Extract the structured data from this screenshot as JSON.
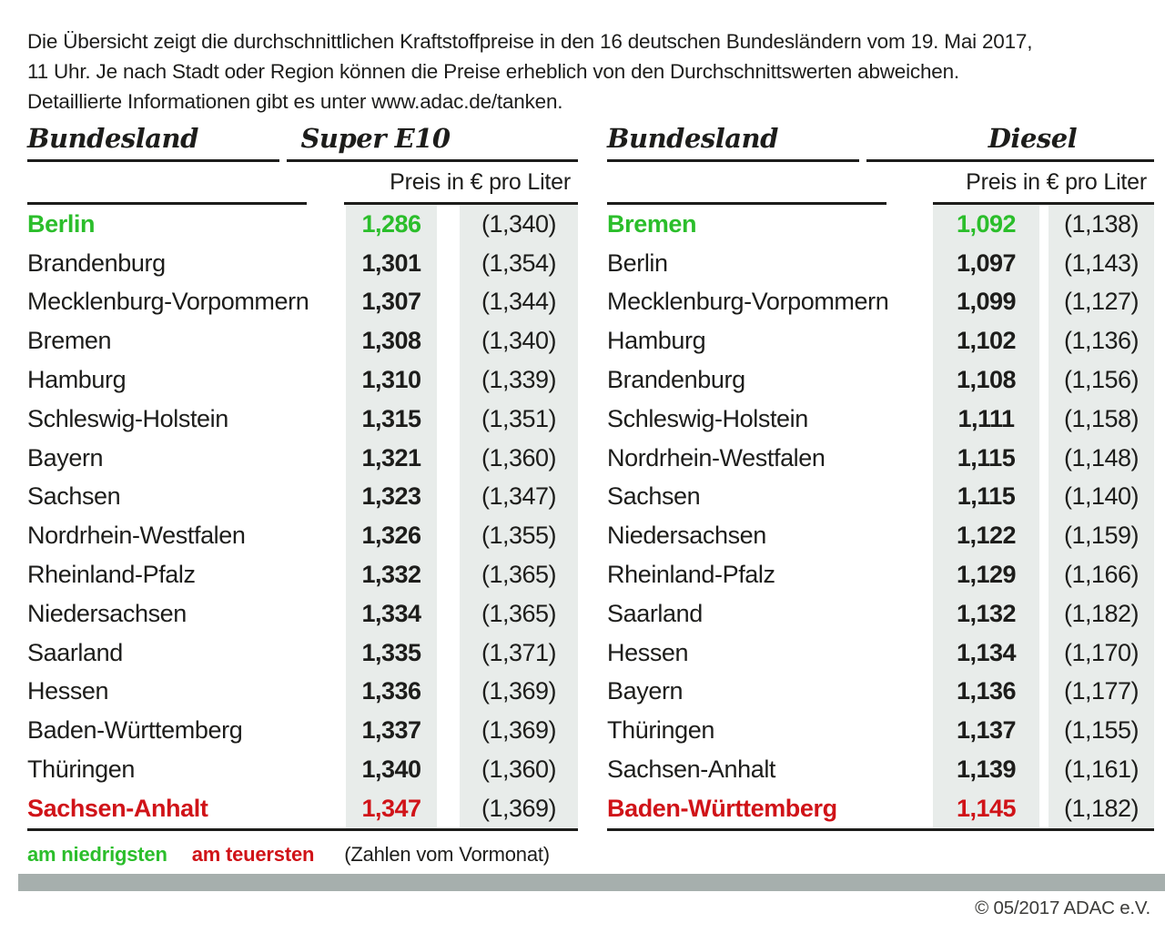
{
  "intro": "Die Übersicht zeigt die durchschnittlichen Kraftstoffpreise in den 16 deutschen Bundesländern vom 19. Mai 2017,\n11 Uhr. Je nach Stadt oder Region können die Preise erheblich von den Durchschnittswerten abweichen.\nDetaillierte Informationen gibt es unter www.adac.de/tanken.",
  "colors": {
    "lowest": "#2bbe2b",
    "highest": "#d01318",
    "column_bg": "#e8ecea",
    "bar": "#a6afad"
  },
  "legend": {
    "lowest": "am niedrigsten",
    "highest": "am teuersten",
    "note": "(Zahlen vom Vormonat)"
  },
  "footer": {
    "copyright": "© 05/2017 ADAC e.V."
  },
  "tables": [
    {
      "id": "super_e10",
      "state_header": "Bundesland",
      "fuel_header": "Super E10",
      "price_header": "Preis in € pro Liter",
      "rows": [
        {
          "state": "Berlin",
          "price": "1,286",
          "prev": "(1,340)",
          "highlight": "lowest"
        },
        {
          "state": "Brandenburg",
          "price": "1,301",
          "prev": "(1,354)",
          "highlight": ""
        },
        {
          "state": "Mecklenburg-Vorpommern",
          "price": "1,307",
          "prev": "(1,344)",
          "highlight": ""
        },
        {
          "state": "Bremen",
          "price": "1,308",
          "prev": "(1,340)",
          "highlight": ""
        },
        {
          "state": "Hamburg",
          "price": "1,310",
          "prev": "(1,339)",
          "highlight": ""
        },
        {
          "state": "Schleswig-Holstein",
          "price": "1,315",
          "prev": "(1,351)",
          "highlight": ""
        },
        {
          "state": "Bayern",
          "price": "1,321",
          "prev": "(1,360)",
          "highlight": ""
        },
        {
          "state": "Sachsen",
          "price": "1,323",
          "prev": "(1,347)",
          "highlight": ""
        },
        {
          "state": "Nordrhein-Westfalen",
          "price": "1,326",
          "prev": "(1,355)",
          "highlight": ""
        },
        {
          "state": "Rheinland-Pfalz",
          "price": "1,332",
          "prev": "(1,365)",
          "highlight": ""
        },
        {
          "state": "Niedersachsen",
          "price": "1,334",
          "prev": "(1,365)",
          "highlight": ""
        },
        {
          "state": "Saarland",
          "price": "1,335",
          "prev": "(1,371)",
          "highlight": ""
        },
        {
          "state": "Hessen",
          "price": "1,336",
          "prev": "(1,369)",
          "highlight": ""
        },
        {
          "state": "Baden-Württemberg",
          "price": "1,337",
          "prev": "(1,369)",
          "highlight": ""
        },
        {
          "state": "Thüringen",
          "price": "1,340",
          "prev": "(1,360)",
          "highlight": ""
        },
        {
          "state": "Sachsen-Anhalt",
          "price": "1,347",
          "prev": "(1,369)",
          "highlight": "highest"
        }
      ]
    },
    {
      "id": "diesel",
      "state_header": "Bundesland",
      "fuel_header": "Diesel",
      "price_header": "Preis in € pro Liter",
      "rows": [
        {
          "state": "Bremen",
          "price": "1,092",
          "prev": "(1,138)",
          "highlight": "lowest"
        },
        {
          "state": "Berlin",
          "price": "1,097",
          "prev": "(1,143)",
          "highlight": ""
        },
        {
          "state": "Mecklenburg-Vorpommern",
          "price": "1,099",
          "prev": "(1,127)",
          "highlight": ""
        },
        {
          "state": "Hamburg",
          "price": "1,102",
          "prev": "(1,136)",
          "highlight": ""
        },
        {
          "state": "Brandenburg",
          "price": "1,108",
          "prev": "(1,156)",
          "highlight": ""
        },
        {
          "state": "Schleswig-Holstein",
          "price": "1,111",
          "prev": "(1,158)",
          "highlight": ""
        },
        {
          "state": "Nordrhein-Westfalen",
          "price": "1,115",
          "prev": "(1,148)",
          "highlight": ""
        },
        {
          "state": "Sachsen",
          "price": "1,115",
          "prev": "(1,140)",
          "highlight": ""
        },
        {
          "state": "Niedersachsen",
          "price": "1,122",
          "prev": "(1,159)",
          "highlight": ""
        },
        {
          "state": "Rheinland-Pfalz",
          "price": "1,129",
          "prev": "(1,166)",
          "highlight": ""
        },
        {
          "state": "Saarland",
          "price": "1,132",
          "prev": "(1,182)",
          "highlight": ""
        },
        {
          "state": "Hessen",
          "price": "1,134",
          "prev": "(1,170)",
          "highlight": ""
        },
        {
          "state": "Bayern",
          "price": "1,136",
          "prev": "(1,177)",
          "highlight": ""
        },
        {
          "state": "Thüringen",
          "price": "1,137",
          "prev": "(1,155)",
          "highlight": ""
        },
        {
          "state": "Sachsen-Anhalt",
          "price": "1,139",
          "prev": "(1,161)",
          "highlight": ""
        },
        {
          "state": "Baden-Württemberg",
          "price": "1,145",
          "prev": "(1,182)",
          "highlight": "highest"
        }
      ]
    }
  ],
  "chart_data": [
    {
      "type": "table",
      "title": "Super E10",
      "columns": [
        "Bundesland",
        "Preis in € pro Liter",
        "Zahlen vom Vormonat"
      ],
      "rows": [
        [
          "Berlin",
          "1,286",
          "1,340"
        ],
        [
          "Brandenburg",
          "1,301",
          "1,354"
        ],
        [
          "Mecklenburg-Vorpommern",
          "1,307",
          "1,344"
        ],
        [
          "Bremen",
          "1,308",
          "1,340"
        ],
        [
          "Hamburg",
          "1,310",
          "1,339"
        ],
        [
          "Schleswig-Holstein",
          "1,315",
          "1,351"
        ],
        [
          "Bayern",
          "1,321",
          "1,360"
        ],
        [
          "Sachsen",
          "1,323",
          "1,347"
        ],
        [
          "Nordrhein-Westfalen",
          "1,326",
          "1,355"
        ],
        [
          "Rheinland-Pfalz",
          "1,332",
          "1,365"
        ],
        [
          "Niedersachsen",
          "1,334",
          "1,365"
        ],
        [
          "Saarland",
          "1,335",
          "1,371"
        ],
        [
          "Hessen",
          "1,336",
          "1,369"
        ],
        [
          "Baden-Württemberg",
          "1,337",
          "1,369"
        ],
        [
          "Thüringen",
          "1,340",
          "1,360"
        ],
        [
          "Sachsen-Anhalt",
          "1,347",
          "1,369"
        ]
      ],
      "notes": "lowest=Berlin (green), highest=Sachsen-Anhalt (red)"
    },
    {
      "type": "table",
      "title": "Diesel",
      "columns": [
        "Bundesland",
        "Preis in € pro Liter",
        "Zahlen vom Vormonat"
      ],
      "rows": [
        [
          "Bremen",
          "1,092",
          "1,138"
        ],
        [
          "Berlin",
          "1,097",
          "1,143"
        ],
        [
          "Mecklenburg-Vorpommern",
          "1,099",
          "1,127"
        ],
        [
          "Hamburg",
          "1,102",
          "1,136"
        ],
        [
          "Brandenburg",
          "1,108",
          "1,156"
        ],
        [
          "Schleswig-Holstein",
          "1,111",
          "1,158"
        ],
        [
          "Nordrhein-Westfalen",
          "1,115",
          "1,148"
        ],
        [
          "Sachsen",
          "1,115",
          "1,140"
        ],
        [
          "Niedersachsen",
          "1,122",
          "1,159"
        ],
        [
          "Rheinland-Pfalz",
          "1,129",
          "1,166"
        ],
        [
          "Saarland",
          "1,132",
          "1,182"
        ],
        [
          "Hessen",
          "1,134",
          "1,170"
        ],
        [
          "Bayern",
          "1,136",
          "1,177"
        ],
        [
          "Thüringen",
          "1,137",
          "1,155"
        ],
        [
          "Sachsen-Anhalt",
          "1,139",
          "1,161"
        ],
        [
          "Baden-Württemberg",
          "1,145",
          "1,182"
        ]
      ],
      "notes": "lowest=Bremen (green), highest=Baden-Württemberg (red)"
    }
  ]
}
